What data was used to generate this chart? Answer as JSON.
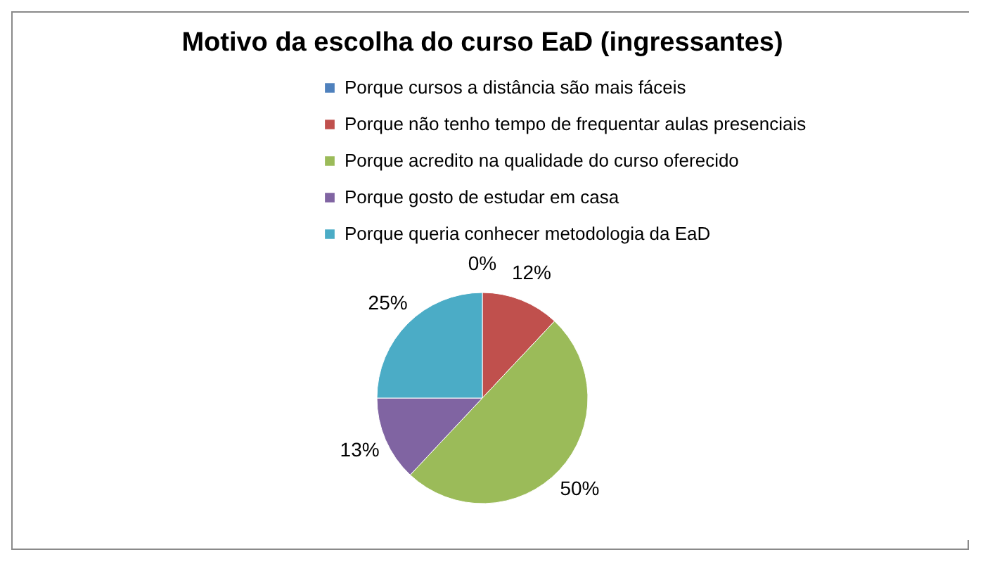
{
  "chart_data": {
    "type": "pie",
    "title": "Motivo da escolha do curso EaD (ingressantes)",
    "categories": [
      "Porque cursos a distância são mais fáceis",
      "Porque não tenho tempo de frequentar aulas presenciais",
      "Porque acredito na qualidade do curso oferecido",
      "Porque gosto de estudar em casa",
      "Porque queria conhecer  metodologia da EaD"
    ],
    "values": [
      0,
      12,
      50,
      13,
      25
    ],
    "value_labels": [
      "0%",
      "12%",
      "50%",
      "13%",
      "25%"
    ],
    "colors": [
      "#4f81bd",
      "#c0504d",
      "#9bbb59",
      "#8064a2",
      "#4bacc6"
    ],
    "legend": "top"
  }
}
